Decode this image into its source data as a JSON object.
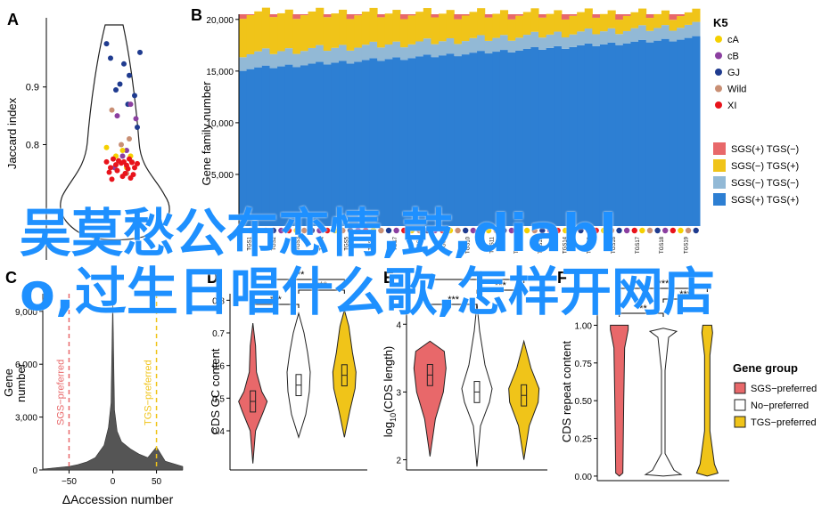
{
  "overlay": {
    "line1": "吴莫愁公布恋情,鼓,diabl",
    "line2": "o,过生日唱什么歌,怎样开网店"
  },
  "panels": {
    "A": {
      "letter": "A"
    },
    "B": {
      "letter": "B"
    },
    "C": {
      "letter": "C"
    },
    "D": {
      "letter": "D"
    },
    "E": {
      "letter": "E"
    },
    "F": {
      "letter": "F"
    }
  },
  "colors": {
    "sgs_plus_tgs_minus": "#e8686a",
    "sgs_minus_tgs_plus": "#f0c419",
    "sgs_minus_tgs_minus": "#92b9d6",
    "sgs_plus_tgs_plus": "#2d7fd3",
    "cA": "#f5d000",
    "cB": "#8b3fa0",
    "GJ": "#1f3b8f",
    "Wild": "#c98f74",
    "XI": "#e8131b",
    "sgs_pref": "#e8686a",
    "no_pref": "#ffffff",
    "tgs_pref": "#f0c419"
  },
  "chart_data": [
    {
      "panel": "A",
      "type": "scatter",
      "title": "",
      "xlabel": "",
      "ylabel": "Jaccard index",
      "ylim": [
        0.6,
        1.02
      ],
      "yticks": [
        "0.8",
        "0.9"
      ],
      "series": [
        {
          "name": "GJ",
          "x": [
            0.48,
            0.58,
            0.62,
            0.55,
            0.7,
            0.52,
            0.66,
            0.45,
            0.61,
            0.68
          ],
          "y": [
            0.95,
            0.94,
            0.92,
            0.905,
            0.96,
            0.895,
            0.885,
            0.975,
            0.87,
            0.83
          ]
        },
        {
          "name": "cB",
          "x": [
            0.53,
            0.63,
            0.6,
            0.57,
            0.67,
            0.51
          ],
          "y": [
            0.85,
            0.87,
            0.79,
            0.78,
            0.845,
            0.76
          ]
        },
        {
          "name": "Wild",
          "x": [
            0.49,
            0.56,
            0.62,
            0.64,
            0.6
          ],
          "y": [
            0.86,
            0.8,
            0.81,
            0.77,
            0.75
          ]
        },
        {
          "name": "cA",
          "x": [
            0.45,
            0.52,
            0.57,
            0.63,
            0.6
          ],
          "y": [
            0.795,
            0.78,
            0.79,
            0.78,
            0.76
          ]
        },
        {
          "name": "XI",
          "x": [
            0.45,
            0.48,
            0.5,
            0.52,
            0.54,
            0.56,
            0.58,
            0.6,
            0.62,
            0.64,
            0.66,
            0.68,
            0.47,
            0.53,
            0.59,
            0.65,
            0.49,
            0.57,
            0.63,
            0.61
          ],
          "y": [
            0.77,
            0.76,
            0.775,
            0.765,
            0.772,
            0.768,
            0.77,
            0.764,
            0.775,
            0.769,
            0.76,
            0.767,
            0.752,
            0.755,
            0.75,
            0.748,
            0.74,
            0.745,
            0.742,
            0.758
          ]
        }
      ]
    },
    {
      "panel": "B",
      "type": "bar",
      "title": "",
      "xlabel": "",
      "ylabel": "Gene family number",
      "ylim": [
        0,
        20500
      ],
      "yticks": [
        "5,000",
        "10,000",
        "15,000",
        "20,000"
      ],
      "n_bars": 60,
      "stacked_order": [
        "SGS(+) TGS(+)",
        "SGS(−) TGS(−)",
        "SGS(−) TGS(+)",
        "SGS(+) TGS(−)"
      ],
      "series_start_end": {
        "SGS(+) TGS(+)": [
          15200,
          18200
        ],
        "SGS(−) TGS(−)": [
          1500,
          1200
        ],
        "SGS(−) TGS(+)": [
          3900,
          1100
        ],
        "SGS(+) TGS(−)": [
          400,
          200
        ]
      },
      "x_tick_prefix": [
        "TGS1",
        "TGS2",
        "TGS3",
        "TGS4",
        "TGS5",
        "TGS6",
        "TGS7",
        "TGS8",
        "TGS9",
        "TGS10",
        "TGS11",
        "TGS12",
        "TGS13",
        "TGS14",
        "TGS15",
        "TGS16",
        "TGS17",
        "TGS18",
        "TGS19"
      ],
      "legend": {
        "K5_title": "K5",
        "K5_items": [
          "cA",
          "cB",
          "GJ",
          "Wild",
          "XI"
        ],
        "fill_items": [
          "SGS(+) TGS(−)",
          "SGS(−) TGS(+)",
          "SGS(−) TGS(−)",
          "SGS(+) TGS(+)"
        ]
      }
    },
    {
      "panel": "C",
      "type": "area",
      "title": "",
      "xlabel": "ΔAccession number",
      "ylabel": "Gene number",
      "xlim": [
        -80,
        80
      ],
      "ylim": [
        0,
        10000
      ],
      "xticks": [
        "−50",
        "0",
        "50"
      ],
      "yticks": [
        "0",
        "3,000",
        "6,000",
        "9,000"
      ],
      "ref_lines": [
        {
          "x": -50,
          "label": "SGS−preferred"
        },
        {
          "x": 50,
          "label": "TGS−preferred"
        }
      ],
      "x": [
        -80,
        -60,
        -50,
        -40,
        -30,
        -20,
        -10,
        -5,
        -2,
        0,
        2,
        5,
        10,
        20,
        30,
        40,
        50,
        60,
        80
      ],
      "values": [
        50,
        150,
        200,
        300,
        450,
        700,
        1400,
        2400,
        3800,
        9800,
        3400,
        2200,
        1600,
        1200,
        900,
        700,
        1300,
        500,
        200
      ]
    },
    {
      "panel": "D",
      "type": "violin",
      "title": "",
      "ylabel": "CDS GC content",
      "ylim": [
        0.28,
        0.82
      ],
      "yticks": [
        "0.4",
        "0.5",
        "0.6",
        "0.7",
        "0.8"
      ],
      "groups": [
        "SGS-preferred",
        "No-preferred",
        "TGS-preferred"
      ],
      "medians": [
        0.49,
        0.54,
        0.57
      ],
      "signif": [
        "***",
        "***",
        "***"
      ]
    },
    {
      "panel": "E",
      "type": "violin",
      "title": "",
      "ylabel": "log10(CDS length)",
      "ylim": [
        1.85,
        4.45
      ],
      "yticks": [
        "2",
        "3",
        "4"
      ],
      "groups": [
        "SGS-preferred",
        "No-preferred",
        "TGS-preferred"
      ],
      "medians": [
        3.25,
        3.0,
        2.95
      ],
      "signif": [
        "***",
        "***",
        "***"
      ]
    },
    {
      "panel": "F",
      "type": "violin",
      "title": "",
      "ylabel": "CDS repeat content",
      "ylim": [
        -0.03,
        1.15
      ],
      "yticks": [
        "0.00",
        "0.25",
        "0.50",
        "0.75",
        "1.00"
      ],
      "groups": [
        "SGS-preferred",
        "No-preferred",
        "TGS-preferred"
      ],
      "signif": [
        "***",
        "***",
        "***"
      ],
      "legend": {
        "title": "Gene group",
        "items": [
          "SGS−preferred",
          "No−preferred",
          "TGS−preferred"
        ]
      }
    }
  ],
  "fig_texts": {
    "ylabelE_prefix": "log",
    "ylabelE_sub": "10",
    "ylabelE_suffix": "(CDS length)"
  }
}
